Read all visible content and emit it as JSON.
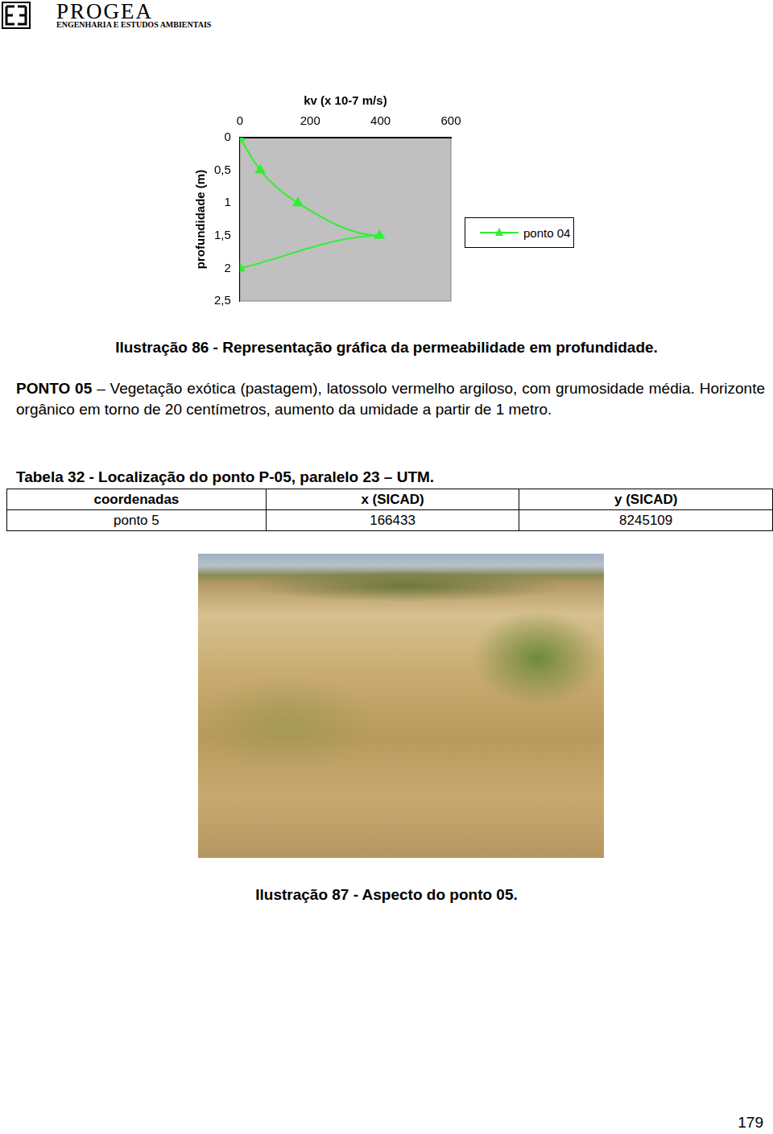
{
  "header": {
    "title": "PROGEA",
    "subtitle": "ENGENHARIA E ESTUDOS AMBIENTAIS"
  },
  "chart_data": {
    "type": "line",
    "x_label": "kv (x 10-7 m/s)",
    "y_label": "profundidade (m)",
    "series": [
      {
        "name": "ponto 04",
        "color": "#33ee33",
        "marker": "triangle",
        "line_style": "solid",
        "x": [
          0,
          58,
          165,
          397,
          0
        ],
        "values": [
          0,
          0.5,
          1,
          1.5,
          2
        ]
      }
    ],
    "xlim": [
      0,
      600
    ],
    "xticks": [
      0,
      200,
      400,
      600
    ],
    "ylim": [
      2.5,
      0
    ],
    "yticks": [
      0,
      {
        "value": 0.5,
        "label": "0,5"
      },
      1,
      {
        "value": 1.5,
        "label": "1,5"
      },
      2,
      {
        "value": 2.5,
        "label": "2,5"
      }
    ],
    "grid": false,
    "legend": "right"
  },
  "caption_chart": "Ilustração 86 - Representação gráfica da permeabilidade em profundidade.",
  "paragraph": {
    "lead": "PONTO 05",
    "text": "– Vegetação exótica (pastagem), latossolo vermelho argiloso, com grumosidade média. Horizonte orgânico em torno de 20 centímetros, aumento da umidade a partir de 1 metro."
  },
  "table": {
    "title": "Tabela 32 - Localização do ponto P-05, paralelo 23 – UTM.",
    "header": [
      "coordenadas",
      "x (SICAD)",
      "y (SICAD)"
    ],
    "rows": [
      [
        "ponto 5",
        166433,
        8245109
      ]
    ]
  },
  "caption_photo": "Ilustração 87 - Aspecto do ponto 05.",
  "page_number": 179
}
